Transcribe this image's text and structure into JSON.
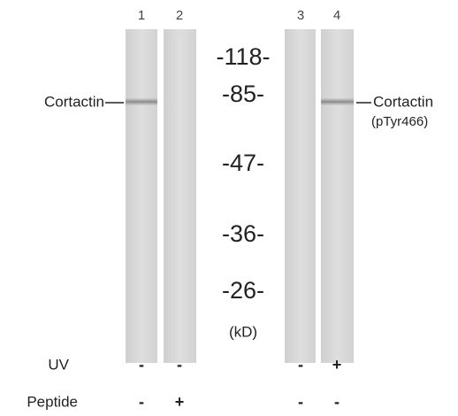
{
  "lanes": [
    "1",
    "2",
    "3",
    "4"
  ],
  "markers": [
    "-118-",
    "-85-",
    "-47-",
    "-36-",
    "-26-"
  ],
  "unit": "(kD)",
  "left_label": "Cortactin",
  "right_label": {
    "name": "Cortactin",
    "detail": "(pTyr466)"
  },
  "conditions": [
    {
      "name": "UV",
      "values": [
        "-",
        "-",
        "-",
        "+"
      ]
    },
    {
      "name": "Peptide",
      "values": [
        "-",
        "+",
        "-",
        "-"
      ]
    }
  ]
}
